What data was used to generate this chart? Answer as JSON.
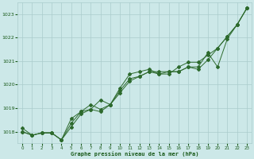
{
  "x": [
    0,
    1,
    2,
    3,
    4,
    5,
    6,
    7,
    8,
    9,
    10,
    11,
    12,
    13,
    14,
    15,
    16,
    17,
    18,
    19,
    20,
    21,
    22,
    23
  ],
  "series1": [
    1018.15,
    1017.85,
    1017.95,
    1017.95,
    1017.65,
    1018.55,
    1018.85,
    1018.95,
    1019.35,
    1019.15,
    1019.85,
    1020.45,
    1020.55,
    1020.65,
    1020.45,
    1020.55,
    1020.55,
    1020.75,
    1020.75,
    1021.35,
    1020.75,
    1021.95,
    1022.55,
    1023.25
  ],
  "series2": [
    1018.0,
    1017.85,
    1017.95,
    1017.95,
    1017.65,
    1018.2,
    1018.75,
    1018.95,
    1018.85,
    1019.15,
    1019.75,
    1020.25,
    1020.35,
    1020.55,
    1020.55,
    1020.55,
    1020.55,
    1020.75,
    1020.65,
    1021.05,
    1021.55,
    1022.05,
    1022.55,
    1023.25
  ],
  "series3": [
    1018.0,
    1017.85,
    1017.95,
    1017.95,
    1017.65,
    1018.35,
    1018.85,
    1019.15,
    1018.95,
    1019.15,
    1019.65,
    1020.15,
    1020.35,
    1020.55,
    1020.45,
    1020.45,
    1020.75,
    1020.95,
    1020.95,
    1021.25,
    1021.55,
    1022.05,
    1022.55,
    1023.25
  ],
  "ylim": [
    1017.5,
    1023.5
  ],
  "xlim": [
    -0.5,
    23.5
  ],
  "yticks": [
    1018,
    1019,
    1020,
    1021,
    1022,
    1023
  ],
  "xticks": [
    0,
    1,
    2,
    3,
    4,
    5,
    6,
    7,
    8,
    9,
    10,
    11,
    12,
    13,
    14,
    15,
    16,
    17,
    18,
    19,
    20,
    21,
    22,
    23
  ],
  "line_color": "#2d6a2d",
  "bg_color": "#cce8e8",
  "grid_color": "#aacccc",
  "xlabel": "Graphe pression niveau de la mer (hPa)",
  "xlabel_color": "#1a5a1a",
  "axis_color": "#1a5a1a",
  "marker_size": 2.0,
  "line_width": 0.7
}
